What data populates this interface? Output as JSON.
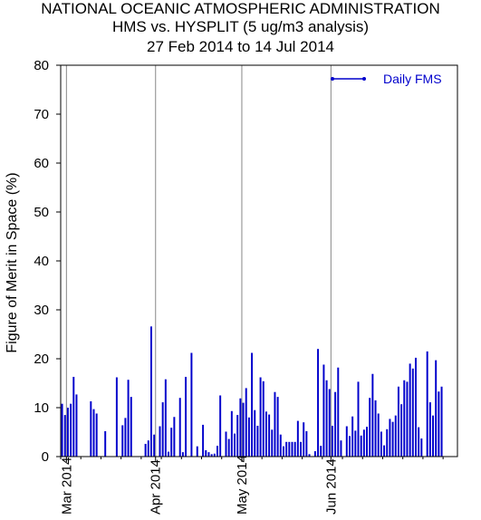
{
  "chart_data": {
    "type": "bar",
    "title": "NATIONAL OCEANIC ATMOSPHERIC ADMINISTRATION",
    "subtitle": [
      "HMS vs. HYSPLIT (5 ug/m3 analysis)",
      "27 Feb 2014 to 14 Jul 2014"
    ],
    "xlabel": "",
    "ylabel": "Figure of Merit in Space (%)",
    "ylim": [
      0,
      80
    ],
    "yticks": [
      0,
      10,
      20,
      30,
      40,
      50,
      60,
      70,
      80
    ],
    "xlim": [
      "2014-02-27",
      "2014-07-14"
    ],
    "xtick_labels": [
      {
        "date": "2014-03-01",
        "label": "Mar 2014"
      },
      {
        "date": "2014-04-01",
        "label": "Apr 2014"
      },
      {
        "date": "2014-05-01",
        "label": "May 2014"
      },
      {
        "date": "2014-06-01",
        "label": "Jun 2014"
      }
    ],
    "grid": "vertical lines at month boundaries",
    "legend_position": "top-right",
    "series": [
      {
        "name": "Daily FMS",
        "color": "#0000cc",
        "x": [
          "2014-02-27",
          "2014-02-28",
          "2014-03-01",
          "2014-03-02",
          "2014-03-03",
          "2014-03-04",
          "2014-03-05",
          "2014-03-08",
          "2014-03-09",
          "2014-03-10",
          "2014-03-11",
          "2014-03-14",
          "2014-03-16",
          "2014-03-17",
          "2014-03-18",
          "2014-03-19",
          "2014-03-20",
          "2014-03-21",
          "2014-03-22",
          "2014-03-23",
          "2014-03-28",
          "2014-03-29",
          "2014-03-30",
          "2014-03-31",
          "2014-04-01",
          "2014-04-02",
          "2014-04-03",
          "2014-04-04",
          "2014-04-05",
          "2014-04-06",
          "2014-04-07",
          "2014-04-08",
          "2014-04-09",
          "2014-04-10",
          "2014-04-11",
          "2014-04-12",
          "2014-04-13",
          "2014-04-15",
          "2014-04-17",
          "2014-04-18",
          "2014-04-19",
          "2014-04-20",
          "2014-04-21",
          "2014-04-22",
          "2014-04-23",
          "2014-04-24",
          "2014-04-25",
          "2014-04-26",
          "2014-04-27",
          "2014-04-28",
          "2014-04-29",
          "2014-04-30",
          "2014-05-01",
          "2014-05-02",
          "2014-05-03",
          "2014-05-04",
          "2014-05-05",
          "2014-05-06",
          "2014-05-07",
          "2014-05-08",
          "2014-05-09",
          "2014-05-10",
          "2014-05-11",
          "2014-05-12",
          "2014-05-13",
          "2014-05-14",
          "2014-05-15",
          "2014-05-16",
          "2014-05-17",
          "2014-05-18",
          "2014-05-19",
          "2014-05-20",
          "2014-05-21",
          "2014-05-22",
          "2014-05-23",
          "2014-05-24",
          "2014-05-26",
          "2014-05-27",
          "2014-05-28",
          "2014-05-29",
          "2014-05-30",
          "2014-05-31",
          "2014-06-01",
          "2014-06-02",
          "2014-06-03",
          "2014-06-04",
          "2014-06-05",
          "2014-06-06",
          "2014-06-07",
          "2014-06-08",
          "2014-06-09",
          "2014-06-10",
          "2014-06-11",
          "2014-06-12",
          "2014-06-13",
          "2014-06-14",
          "2014-06-15",
          "2014-06-16",
          "2014-06-17",
          "2014-06-18",
          "2014-06-19",
          "2014-06-20",
          "2014-06-21",
          "2014-06-22",
          "2014-06-23",
          "2014-06-24",
          "2014-06-25",
          "2014-06-26",
          "2014-06-27",
          "2014-06-28",
          "2014-06-29",
          "2014-06-30",
          "2014-07-01",
          "2014-07-02",
          "2014-07-03",
          "2014-07-04",
          "2014-07-05",
          "2014-07-06",
          "2014-07-07",
          "2014-07-08",
          "2014-07-09",
          "2014-07-10",
          "2014-07-11",
          "2014-07-12",
          "2014-07-13",
          "2014-07-14"
        ],
        "values": [
          10.8,
          8.5,
          10.0,
          10.8,
          16.3,
          12.7,
          0,
          0,
          11.3,
          9.7,
          8.8,
          5.2,
          0,
          0,
          16.2,
          0,
          6.4,
          7.9,
          15.7,
          12.2,
          2.6,
          3.3,
          26.6,
          4.5,
          0,
          6.2,
          11.1,
          15.8,
          1.0,
          5.9,
          8.1,
          0,
          12.0,
          0.9,
          16.3,
          0,
          21.2,
          2.1,
          6.5,
          1.3,
          0.9,
          0.5,
          0.6,
          2.2,
          12.5,
          0,
          5.1,
          3.6,
          9.3,
          4.7,
          8.5,
          11.9,
          11.0,
          14.0,
          8.0,
          21.2,
          9.5,
          6.3,
          16.2,
          15.4,
          9.2,
          8.6,
          5.5,
          13.2,
          12.2,
          4.5,
          2.1,
          3.0,
          3.0,
          3.0,
          3.0,
          7.3,
          3.0,
          7.0,
          5.2,
          0.5,
          1.1,
          22.0,
          2.2,
          18.8,
          15.6,
          13.8,
          6.3,
          13.2,
          18.2,
          3.3,
          0,
          6.2,
          4.2,
          8.2,
          5.3,
          15.3,
          4.3,
          5.5,
          6.1,
          12.0,
          16.9,
          11.5,
          8.8,
          5.1,
          2.3,
          5.6,
          7.7,
          7.1,
          8.4,
          14.3,
          10.7,
          15.6,
          15.3,
          19.0,
          18.0,
          20.2,
          6.0,
          3.7,
          0,
          21.5,
          11.1,
          8.4,
          19.7,
          13.3,
          14.3,
          0,
          0,
          0,
          0,
          0
        ]
      }
    ]
  }
}
